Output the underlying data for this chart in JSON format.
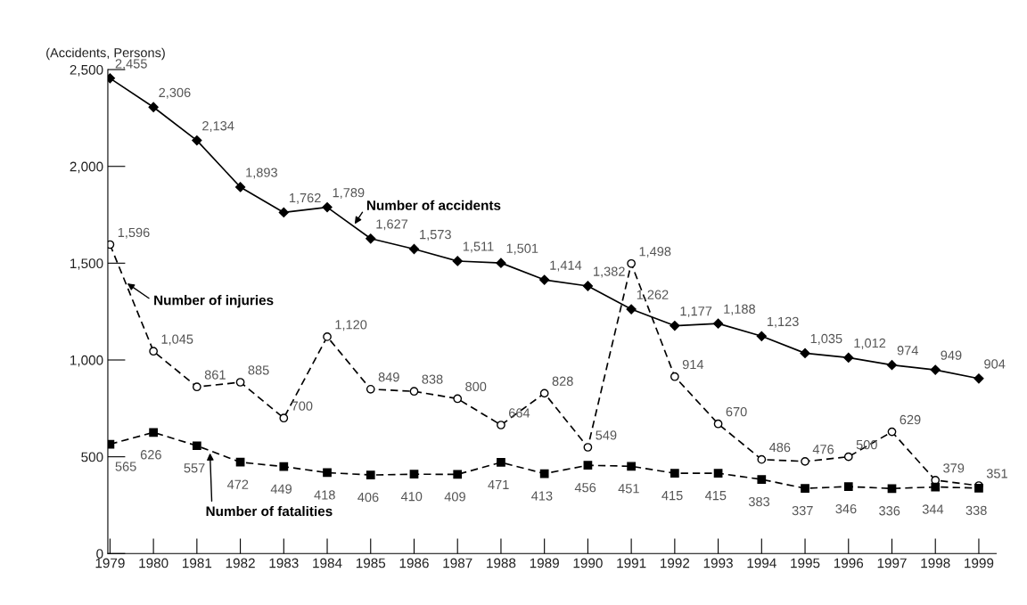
{
  "chart_data": {
    "type": "line",
    "ylabel": "(Accidents, Persons)",
    "categories": [
      "1979",
      "1980",
      "1981",
      "1982",
      "1983",
      "1984",
      "1985",
      "1986",
      "1987",
      "1988",
      "1989",
      "1990",
      "1991",
      "1992",
      "1993",
      "1994",
      "1995",
      "1996",
      "1997",
      "1998",
      "1999"
    ],
    "series": [
      {
        "name": "Number of accidents",
        "color": "#000000",
        "marker": "diamond",
        "line_style": "solid",
        "values": [
          2455,
          2306,
          2134,
          1893,
          1762,
          1789,
          1627,
          1573,
          1511,
          1501,
          1414,
          1382,
          1262,
          1177,
          1188,
          1123,
          1035,
          1012,
          974,
          949,
          904
        ],
        "value_labels": [
          "2,455",
          "2,306",
          "2,134",
          "1,893",
          "1,762",
          "1,789",
          "1,627",
          "1,573",
          "1,511",
          "1,501",
          "1,414",
          "1,382",
          "1,262",
          "1,177",
          "1,188",
          "1,123",
          "1,035",
          "1,012",
          "974",
          "949",
          "904"
        ]
      },
      {
        "name": "Number of injuries",
        "color": "#000000",
        "marker": "circle",
        "line_style": "dashed",
        "values": [
          1596,
          1045,
          861,
          885,
          700,
          1120,
          849,
          838,
          800,
          664,
          828,
          549,
          1498,
          914,
          670,
          486,
          476,
          500,
          629,
          379,
          351
        ],
        "value_labels": [
          "1,596",
          "1,045",
          "861",
          "885",
          "700",
          "1,120",
          "849",
          "838",
          "800",
          "664",
          "828",
          "549",
          "1,498",
          "914",
          "670",
          "486",
          "476",
          "500",
          "629",
          "379",
          "351"
        ]
      },
      {
        "name": "Number of fatalities",
        "color": "#000000",
        "marker": "square",
        "line_style": "dashed",
        "values": [
          565,
          626,
          557,
          472,
          449,
          418,
          406,
          410,
          409,
          471,
          413,
          456,
          451,
          415,
          415,
          383,
          337,
          346,
          336,
          344,
          338
        ],
        "value_labels": [
          "565",
          "626",
          "557",
          "472",
          "449",
          "418",
          "406",
          "410",
          "409",
          "471",
          "413",
          "456",
          "451",
          "415",
          "415",
          "383",
          "337",
          "346",
          "336",
          "344",
          "338"
        ]
      }
    ],
    "ylim": [
      0,
      2500
    ],
    "yticks": [
      0,
      {
        "value": 500,
        "label": "500"
      },
      {
        "value": 1000,
        "label": "1,000"
      },
      {
        "value": 1500,
        "label": "1,500"
      },
      {
        "value": 2000,
        "label": "2,000"
      },
      {
        "value": 2500,
        "label": "2,500"
      }
    ],
    "grid": false
  }
}
